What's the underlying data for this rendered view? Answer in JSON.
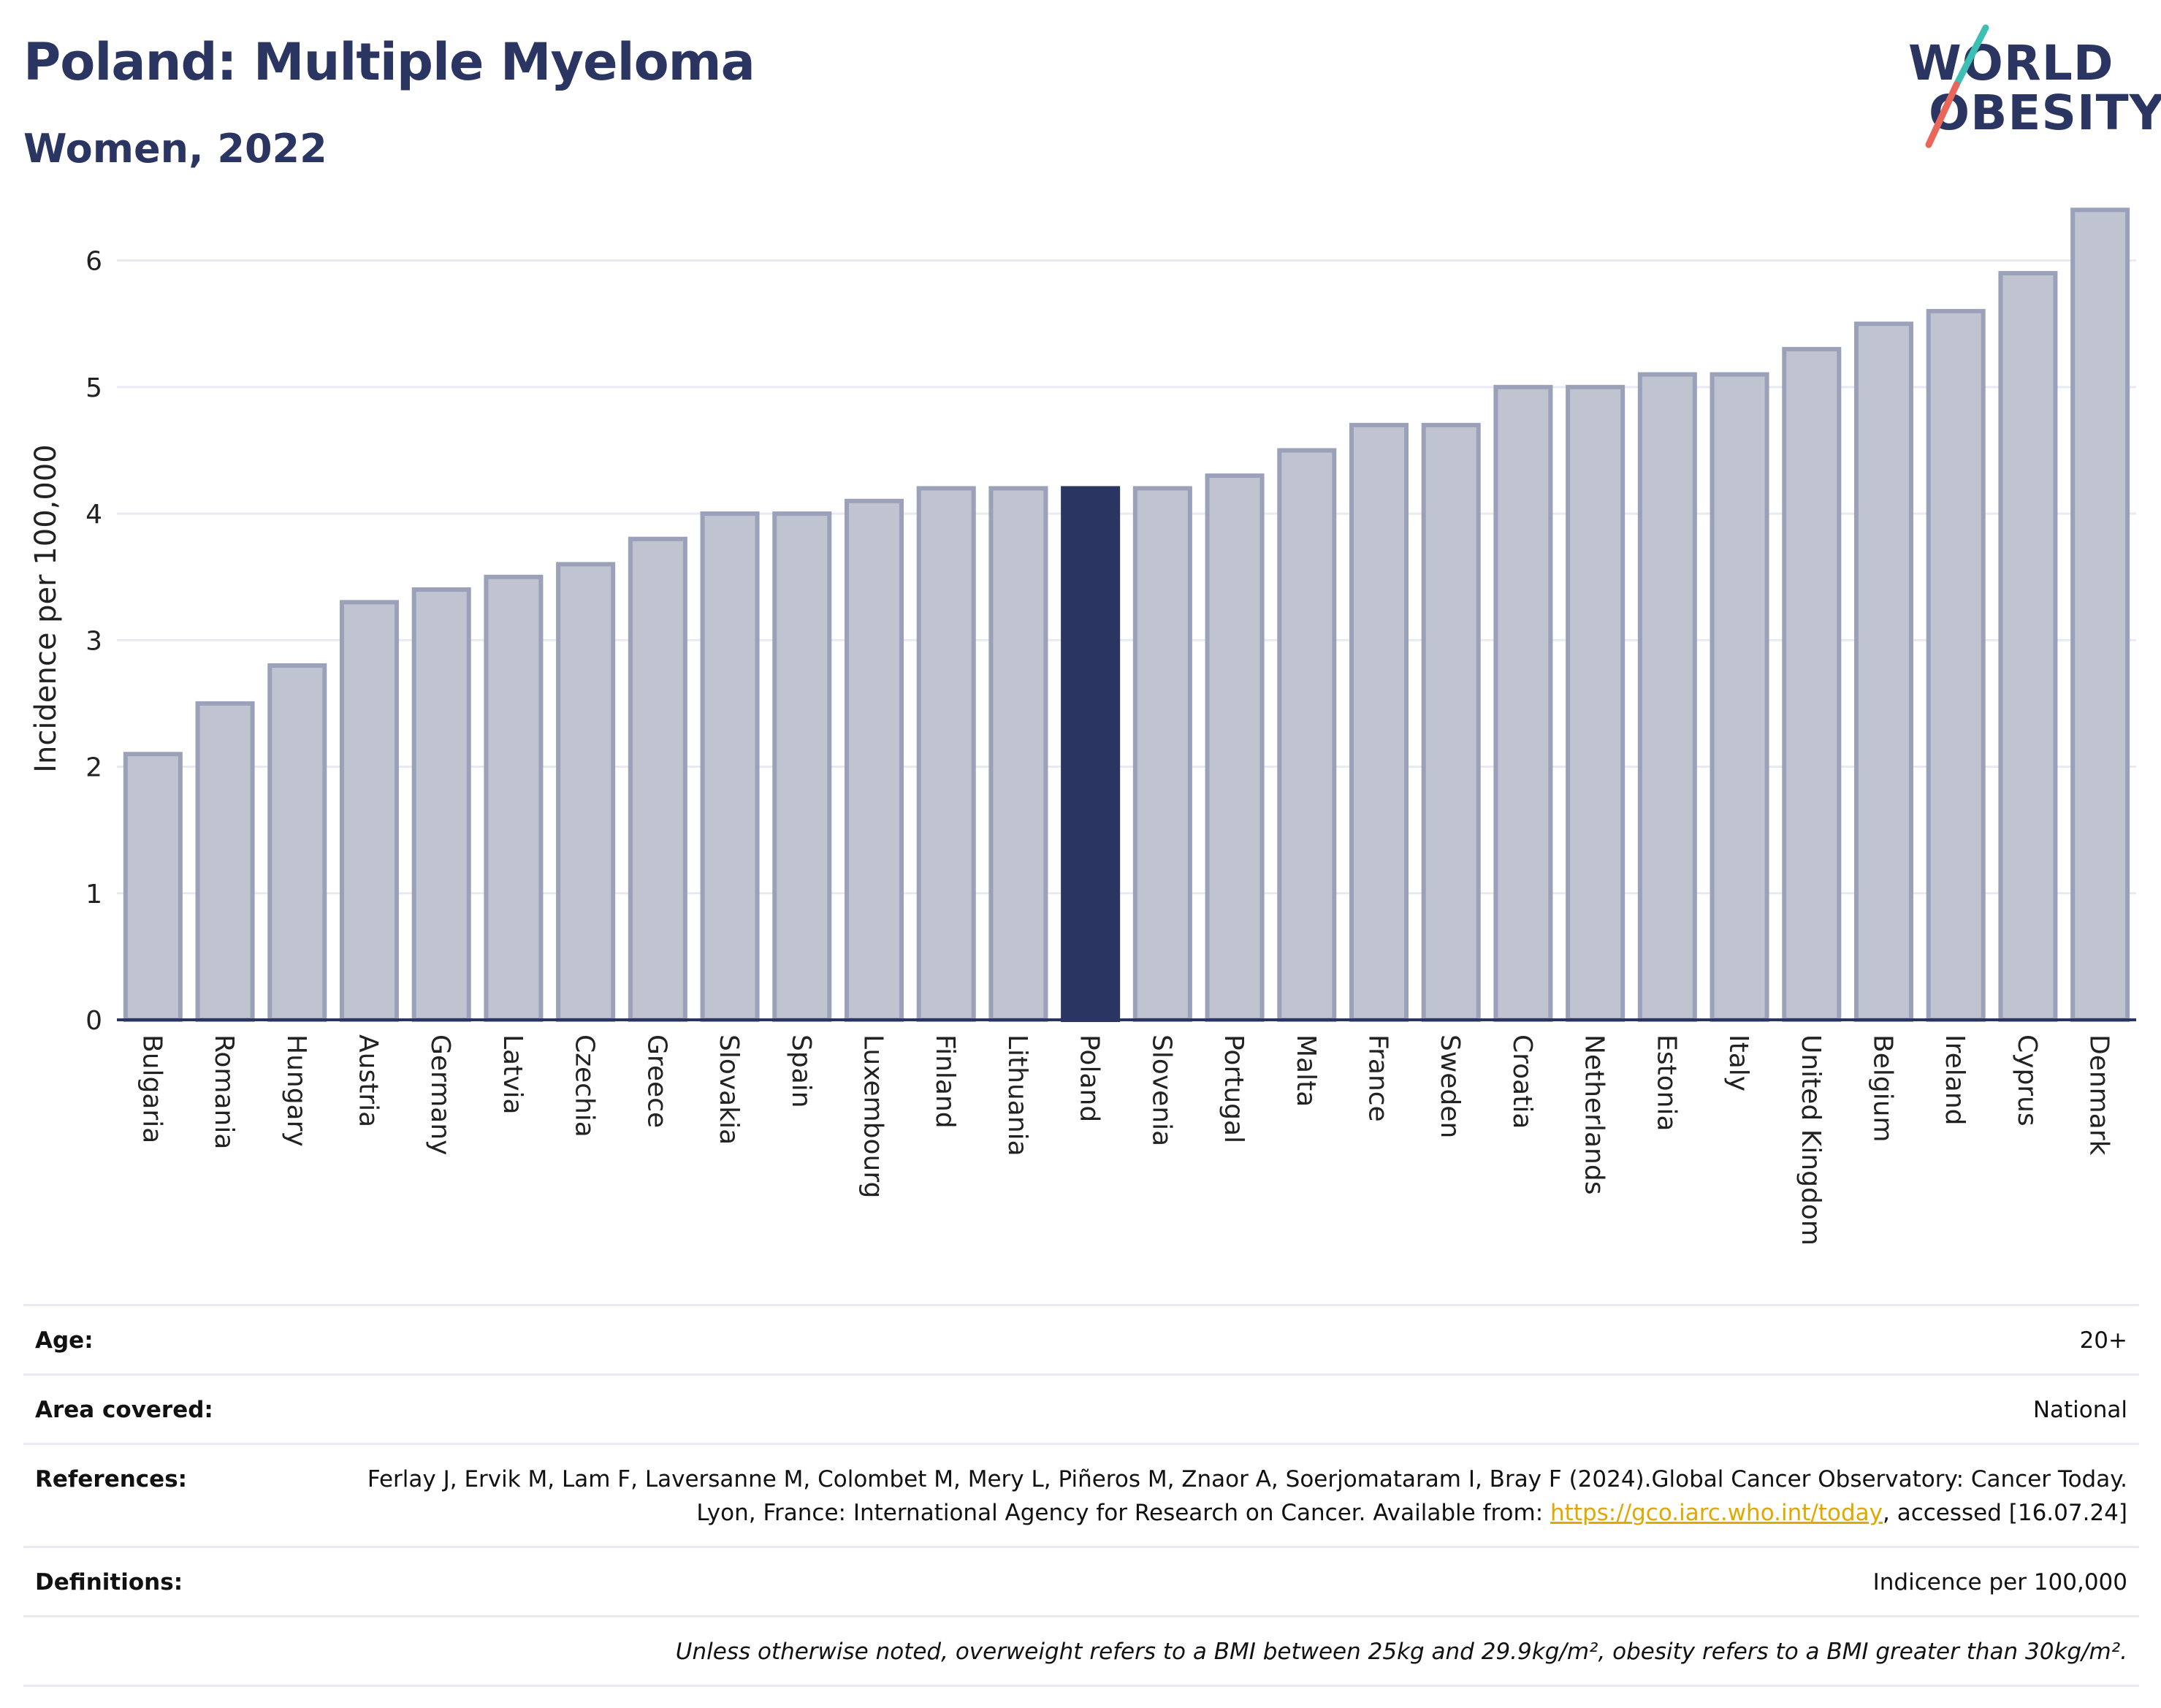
{
  "header": {
    "title": "Poland: Multiple Myeloma",
    "subtitle": "Women, 2022"
  },
  "logo": {
    "line1": "WORLD",
    "line2": "OBESITY"
  },
  "chart_data": {
    "type": "bar",
    "ylabel": "Incidence per 100,000",
    "ylim": [
      0,
      6.5
    ],
    "yticks": [
      0,
      1,
      2,
      3,
      4,
      5,
      6
    ],
    "grid": true,
    "highlight": "Poland",
    "colors": {
      "bar": "#c0c4d0",
      "bar_border": "#9aa1b8",
      "highlight": "#2b3561",
      "axis": "#2b3561",
      "grid": "#e8eaf2"
    },
    "categories": [
      "Bulgaria",
      "Romania",
      "Hungary",
      "Austria",
      "Germany",
      "Latvia",
      "Czechia",
      "Greece",
      "Slovakia",
      "Spain",
      "Luxembourg",
      "Finland",
      "Lithuania",
      "Poland",
      "Slovenia",
      "Portugal",
      "Malta",
      "France",
      "Sweden",
      "Croatia",
      "Netherlands",
      "Estonia",
      "Italy",
      "United Kingdom",
      "Belgium",
      "Ireland",
      "Cyprus",
      "Denmark"
    ],
    "values": [
      2.1,
      2.5,
      2.8,
      3.3,
      3.4,
      3.5,
      3.6,
      3.8,
      4.0,
      4.0,
      4.1,
      4.2,
      4.2,
      4.2,
      4.2,
      4.3,
      4.5,
      4.7,
      4.7,
      5.0,
      5.0,
      5.1,
      5.1,
      5.3,
      5.5,
      5.6,
      5.9,
      6.4
    ]
  },
  "meta": {
    "age_label": "Age:",
    "age_value": "20+",
    "area_label": "Area covered:",
    "area_value": "National",
    "references_label": "References:",
    "references_text_1": "Ferlay J, Ervik M, Lam F, Laversanne M, Colombet M, Mery L, Piñeros M, Znaor A, Soerjomataram I, Bray F (2024).Global Cancer Observatory: Cancer Today. Lyon, France: International Agency for Research on Cancer. Available from: ",
    "references_link": "https://gco.iarc.who.int/today",
    "references_text_2": ", accessed [16.07.24]",
    "definitions_label": "Definitions:",
    "definitions_value": "Indicence per 100,000",
    "note": "Unless otherwise noted, overweight refers to a BMI between 25kg and 29.9kg/m², obesity refers to a BMI greater than 30kg/m²."
  }
}
